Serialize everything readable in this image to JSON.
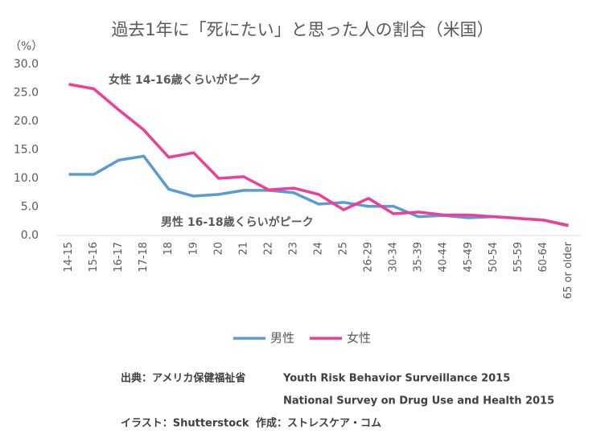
{
  "chart_data": {
    "type": "line",
    "title": "過去1年に「死にたい」と思った人の割合（米国）",
    "y_unit": "（%）",
    "categories": [
      "14-15",
      "15-16",
      "16-17",
      "17-18",
      "18",
      "19",
      "20",
      "21",
      "22",
      "23",
      "24",
      "25",
      "26-29",
      "30-34",
      "35-39",
      "40-44",
      "45-49",
      "50-54",
      "55-59",
      "60-64",
      "65 or older"
    ],
    "series": [
      {
        "name": "男性",
        "color": "#5b9bd5",
        "values": [
          10.7,
          10.7,
          13.2,
          13.9,
          8.1,
          6.9,
          7.2,
          7.9,
          7.9,
          7.5,
          5.5,
          5.8,
          5.1,
          5.1,
          3.3,
          3.5,
          3.1,
          3.3,
          3.0,
          2.7,
          1.8
        ]
      },
      {
        "name": "女性",
        "color": "#ef3e96",
        "values": [
          26.5,
          25.7,
          22.0,
          18.5,
          13.7,
          14.5,
          10.0,
          10.3,
          8.0,
          8.3,
          7.2,
          4.5,
          6.5,
          3.8,
          4.1,
          3.6,
          3.6,
          3.3,
          3.0,
          2.7,
          1.7
        ]
      }
    ],
    "ylim": [
      0,
      30
    ],
    "yticks": [
      {
        "value": 0,
        "label": "0.0"
      },
      {
        "value": 5,
        "label": "5.0"
      },
      {
        "value": 10,
        "label": "10.0"
      },
      {
        "value": 15,
        "label": "15.0"
      },
      {
        "value": 20,
        "label": "20.0"
      },
      {
        "value": 25,
        "label": "25.0"
      },
      {
        "value": 30,
        "label": "30.0"
      }
    ],
    "annotations": [
      {
        "text": "女性 14-16歳くらいがピーク",
        "color": "#ef3e96"
      },
      {
        "text": "男性 16-18歳くらいがピーク",
        "color": "#1f2a7a"
      }
    ],
    "legend": "bottom",
    "source": [
      "出典：アメリカ保健福祉省",
      "Youth Risk Behavior Surveillance 2015",
      "National Survey on Drug Use and Health 2015"
    ],
    "credits": [
      "イラスト：Shutterstock",
      "作成：ストレスケア・コム"
    ]
  }
}
